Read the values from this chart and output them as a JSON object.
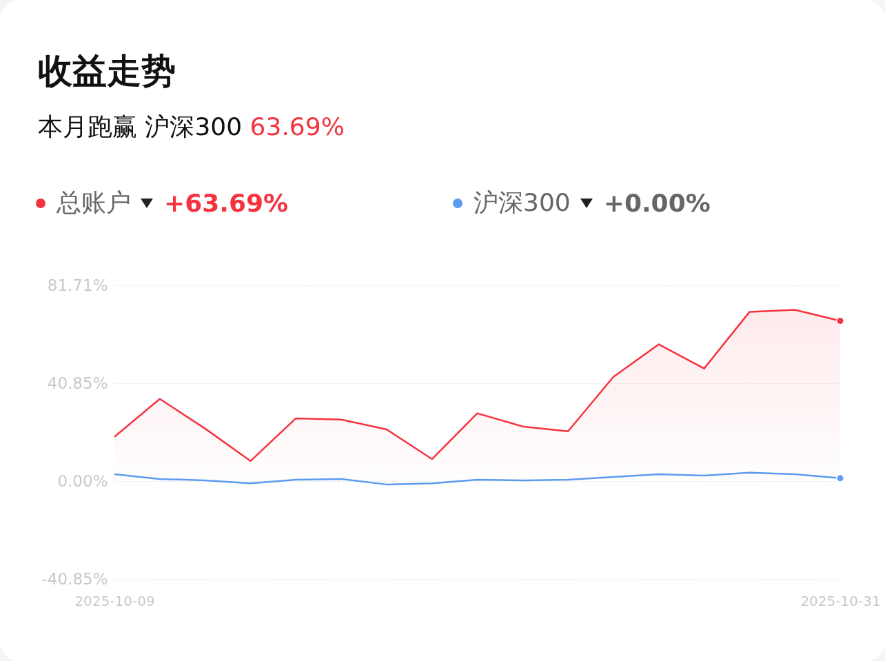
{
  "chart_data": {
    "type": "line",
    "title": "收益走势",
    "subtitle": "本月跑赢 沪深300 63.69%",
    "categories": [
      "2025-10-09",
      null,
      null,
      null,
      null,
      null,
      null,
      null,
      null,
      null,
      null,
      null,
      null,
      null,
      null,
      null,
      "2025-10-31"
    ],
    "series": [
      {
        "name": "总账户",
        "type": "area",
        "color": "#f5333f",
        "values": [
          18.5,
          34.3,
          21.9,
          8.4,
          26.2,
          25.7,
          21.6,
          9.2,
          28.3,
          22.8,
          20.8,
          43.5,
          57.1,
          47.0,
          70.6,
          71.5,
          66.9
        ]
      },
      {
        "name": "沪深300",
        "color": "#5b9cf0",
        "values": [
          2.9,
          0.9,
          0.3,
          -0.9,
          0.6,
          0.9,
          -1.4,
          -0.9,
          0.6,
          0.3,
          0.6,
          1.7,
          2.9,
          2.3,
          3.5,
          2.9,
          1.2
        ]
      }
    ],
    "annotations": [
      "+63.69%",
      "+0.00%"
    ],
    "ylim": [
      -40.85,
      81.71
    ],
    "yticks": [
      {
        "value": -40.85,
        "label": "-40.85%"
      },
      {
        "value": 0,
        "label": "0.00%"
      },
      {
        "value": 40.85,
        "label": "40.85%"
      },
      {
        "value": 81.71,
        "label": "81.71%"
      }
    ],
    "grid": "y",
    "legend": "top left"
  }
}
